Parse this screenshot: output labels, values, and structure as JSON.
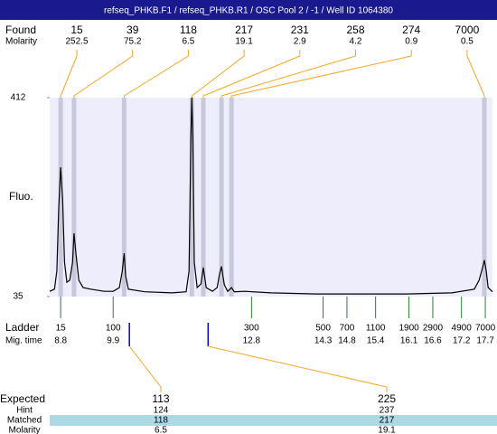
{
  "chart_data": {
    "type": "electropherogram",
    "title": "refseq_PHKB.F1 / refseq_PHKB.R1 / OSC Pool 2 / -1 / Well ID 1064380",
    "found": {
      "label": "Found",
      "sublabel": "Molarity",
      "peaks": [
        {
          "size": 15,
          "molarity": 252.5,
          "time": 8.8
        },
        {
          "size": 39,
          "molarity": 75.2,
          "time": 9.08
        },
        {
          "size": 118,
          "molarity": 6.5,
          "time": 10.13
        },
        {
          "size": 217,
          "molarity": 19.1,
          "time": 11.55
        },
        {
          "size": 231,
          "molarity": 2.9,
          "time": 11.79
        },
        {
          "size": 258,
          "molarity": 4.2,
          "time": 12.17
        },
        {
          "size": 274,
          "molarity": 0.9,
          "time": 12.38
        },
        {
          "size": 7000,
          "molarity": 0.5,
          "time": 17.68
        }
      ]
    },
    "y_label": "Fluo.",
    "ylim": [
      35,
      412
    ],
    "yticks": [
      35,
      412
    ],
    "xlim": [
      8.57,
      17.85
    ],
    "trace": {
      "color": "#000000",
      "x": [
        8.57,
        8.67,
        8.72,
        8.76,
        8.8,
        8.84,
        8.88,
        8.93,
        8.99,
        9.05,
        9.08,
        9.12,
        9.18,
        9.27,
        9.43,
        9.71,
        9.9,
        10.03,
        10.09,
        10.13,
        10.16,
        10.22,
        10.56,
        11.13,
        11.43,
        11.49,
        11.53,
        11.55,
        11.57,
        11.6,
        11.66,
        11.74,
        11.79,
        11.85,
        11.98,
        12.08,
        12.13,
        12.17,
        12.23,
        12.3,
        12.38,
        12.44,
        12.65,
        13.21,
        14.16,
        15.11,
        16.05,
        17.0,
        17.47,
        17.57,
        17.65,
        17.68,
        17.72,
        17.76,
        17.85
      ],
      "values": [
        45,
        49,
        83,
        203,
        280,
        220,
        100,
        62,
        66,
        100,
        155,
        117,
        66,
        52,
        49,
        45,
        45,
        52,
        83,
        117,
        74,
        49,
        44,
        42,
        44,
        83,
        340,
        412,
        340,
        100,
        52,
        59,
        90,
        52,
        45,
        52,
        78,
        92,
        57,
        45,
        52,
        44,
        45,
        42,
        40,
        40,
        40,
        42,
        49,
        66,
        92,
        104,
        83,
        52,
        44
      ]
    },
    "ladder": {
      "label": "Ladder",
      "sublabel": "Mig. time",
      "sizes": [
        15,
        100,
        300,
        500,
        700,
        1100,
        1900,
        2900,
        4900,
        7000
      ],
      "times": [
        8.8,
        9.9,
        12.8,
        14.3,
        14.8,
        15.4,
        16.1,
        16.6,
        17.2,
        17.7
      ]
    },
    "expected": {
      "label": "Expected",
      "hint_label": "Hint",
      "matched_label": "Matched",
      "molarity_label": "Molarity",
      "items": [
        {
          "size": 113,
          "hint": 124,
          "matched": 118,
          "molarity": 6.5,
          "time": 10.24
        },
        {
          "size": 225,
          "hint": 237,
          "matched": 217,
          "molarity": 19.1,
          "time": 11.89
        }
      ]
    }
  }
}
